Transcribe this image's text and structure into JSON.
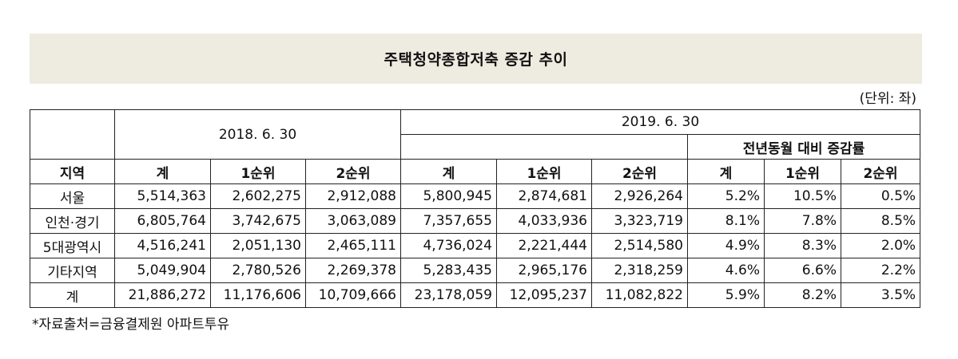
{
  "title": "주택청약종합저축 증감 추이",
  "unit": "(단위: 좌)",
  "header": {
    "region_label": "지역",
    "year_2018": "2018. 6. 30",
    "year_2019": "2019. 6. 30",
    "yoy_label": "전년동월 대비 증감률",
    "col_total": "계",
    "col_rank1": "1순위",
    "col_rank2": "2순위"
  },
  "rows": [
    {
      "region": "서울",
      "v2018_total": "5,514,363",
      "v2018_rank1": "2,602,275",
      "v2018_rank2": "2,912,088",
      "v2019_total": "5,800,945",
      "v2019_rank1": "2,874,681",
      "v2019_rank2": "2,926,264",
      "yoy_total": "5.2%",
      "yoy_rank1": "10.5%",
      "yoy_rank2": "0.5%"
    },
    {
      "region": "인천·경기",
      "v2018_total": "6,805,764",
      "v2018_rank1": "3,742,675",
      "v2018_rank2": "3,063,089",
      "v2019_total": "7,357,655",
      "v2019_rank1": "4,033,936",
      "v2019_rank2": "3,323,719",
      "yoy_total": "8.1%",
      "yoy_rank1": "7.8%",
      "yoy_rank2": "8.5%"
    },
    {
      "region": "5대광역시",
      "v2018_total": "4,516,241",
      "v2018_rank1": "2,051,130",
      "v2018_rank2": "2,465,111",
      "v2019_total": "4,736,024",
      "v2019_rank1": "2,221,444",
      "v2019_rank2": "2,514,580",
      "yoy_total": "4.9%",
      "yoy_rank1": "8.3%",
      "yoy_rank2": "2.0%"
    },
    {
      "region": "기타지역",
      "v2018_total": "5,049,904",
      "v2018_rank1": "2,780,526",
      "v2018_rank2": "2,269,378",
      "v2019_total": "5,283,435",
      "v2019_rank1": "2,965,176",
      "v2019_rank2": "2,318,259",
      "yoy_total": "4.6%",
      "yoy_rank1": "6.6%",
      "yoy_rank2": "2.2%"
    },
    {
      "region": "계",
      "v2018_total": "21,886,272",
      "v2018_rank1": "11,176,606",
      "v2018_rank2": "10,709,666",
      "v2019_total": "23,178,059",
      "v2019_rank1": "12,095,237",
      "v2019_rank2": "11,082,822",
      "yoy_total": "5.9%",
      "yoy_rank1": "8.2%",
      "yoy_rank2": "3.5%"
    }
  ],
  "footnote": "*자료출처=금융결제원 아파트투유",
  "colors": {
    "title_background": "#eeece1",
    "border": "#222222"
  }
}
